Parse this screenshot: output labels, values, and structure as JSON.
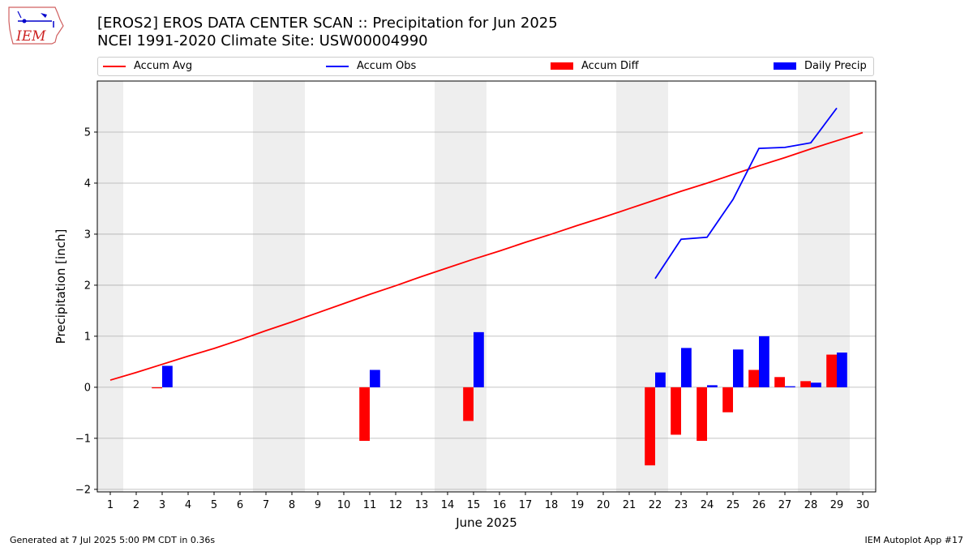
{
  "logo": {
    "text": "IEM",
    "icon": "iowa-state-outline-icon"
  },
  "title": {
    "line1": "[EROS2] EROS DATA CENTER SCAN :: Precipitation for Jun 2025",
    "line2": "NCEI 1991-2020 Climate Site: USW00004990"
  },
  "legend": {
    "accum_avg": "Accum Avg",
    "accum_obs": "Accum Obs",
    "accum_diff": "Accum Diff",
    "daily_precip": "Daily Precip"
  },
  "footer": {
    "left": "Generated at 7 Jul 2025 5:00 PM CDT in 0.36s",
    "right": "IEM Autoplot App #17"
  },
  "colors": {
    "accum_avg": "#ff0000",
    "accum_obs": "#0000ff",
    "accum_diff": "#ff0000",
    "daily_precip": "#0000ff",
    "weekend_shade": "#eeeeee",
    "grid": "#b0b0b0"
  },
  "chart_data": {
    "type": "bar",
    "xlabel": "June 2025",
    "ylabel": "Precipitation [inch]",
    "xlim": [
      0.5,
      30.5
    ],
    "ylim": [
      -2.05,
      6.0
    ],
    "yticks": [
      -2,
      -1,
      0,
      1,
      2,
      3,
      4,
      5
    ],
    "grid": "horizontal",
    "legend_position": "top",
    "weekend_days": [
      1,
      7,
      8,
      14,
      15,
      21,
      22,
      28,
      29
    ],
    "days": [
      1,
      2,
      3,
      4,
      5,
      6,
      7,
      8,
      9,
      10,
      11,
      12,
      13,
      14,
      15,
      16,
      17,
      18,
      19,
      20,
      21,
      22,
      23,
      24,
      25,
      26,
      27,
      28,
      29,
      30
    ],
    "series": [
      {
        "name": "Accum Avg",
        "kind": "line",
        "x": [
          1,
          2,
          3,
          4,
          5,
          6,
          7,
          8,
          9,
          10,
          11,
          12,
          13,
          14,
          15,
          16,
          17,
          18,
          19,
          20,
          21,
          22,
          23,
          24,
          25,
          26,
          27,
          28,
          29,
          30
        ],
        "values": [
          0.14,
          0.29,
          0.45,
          0.61,
          0.76,
          0.93,
          1.11,
          1.28,
          1.46,
          1.64,
          1.82,
          1.99,
          2.17,
          2.34,
          2.51,
          2.67,
          2.84,
          3.0,
          3.17,
          3.33,
          3.5,
          3.67,
          3.84,
          4.0,
          4.17,
          4.34,
          4.5,
          4.67,
          4.83,
          4.99
        ]
      },
      {
        "name": "Accum Obs",
        "kind": "line",
        "x": [
          22,
          23,
          24,
          25,
          26,
          27,
          28,
          29
        ],
        "values": [
          2.13,
          2.9,
          2.94,
          3.68,
          4.68,
          4.7,
          4.79,
          5.47
        ]
      },
      {
        "name": "Accum Diff",
        "kind": "bar",
        "x": [
          3,
          11,
          15,
          22,
          23,
          24,
          25,
          26,
          27,
          28,
          29
        ],
        "values": [
          -0.02,
          -1.05,
          -0.66,
          -1.53,
          -0.93,
          -1.05,
          -0.49,
          0.34,
          0.2,
          0.12,
          0.64
        ]
      },
      {
        "name": "Daily Precip",
        "kind": "bar",
        "x": [
          3,
          11,
          15,
          22,
          23,
          24,
          25,
          26,
          27,
          28,
          29
        ],
        "values": [
          0.42,
          0.34,
          1.08,
          0.29,
          0.77,
          0.04,
          0.74,
          1.0,
          0.02,
          0.09,
          0.68
        ]
      }
    ]
  }
}
